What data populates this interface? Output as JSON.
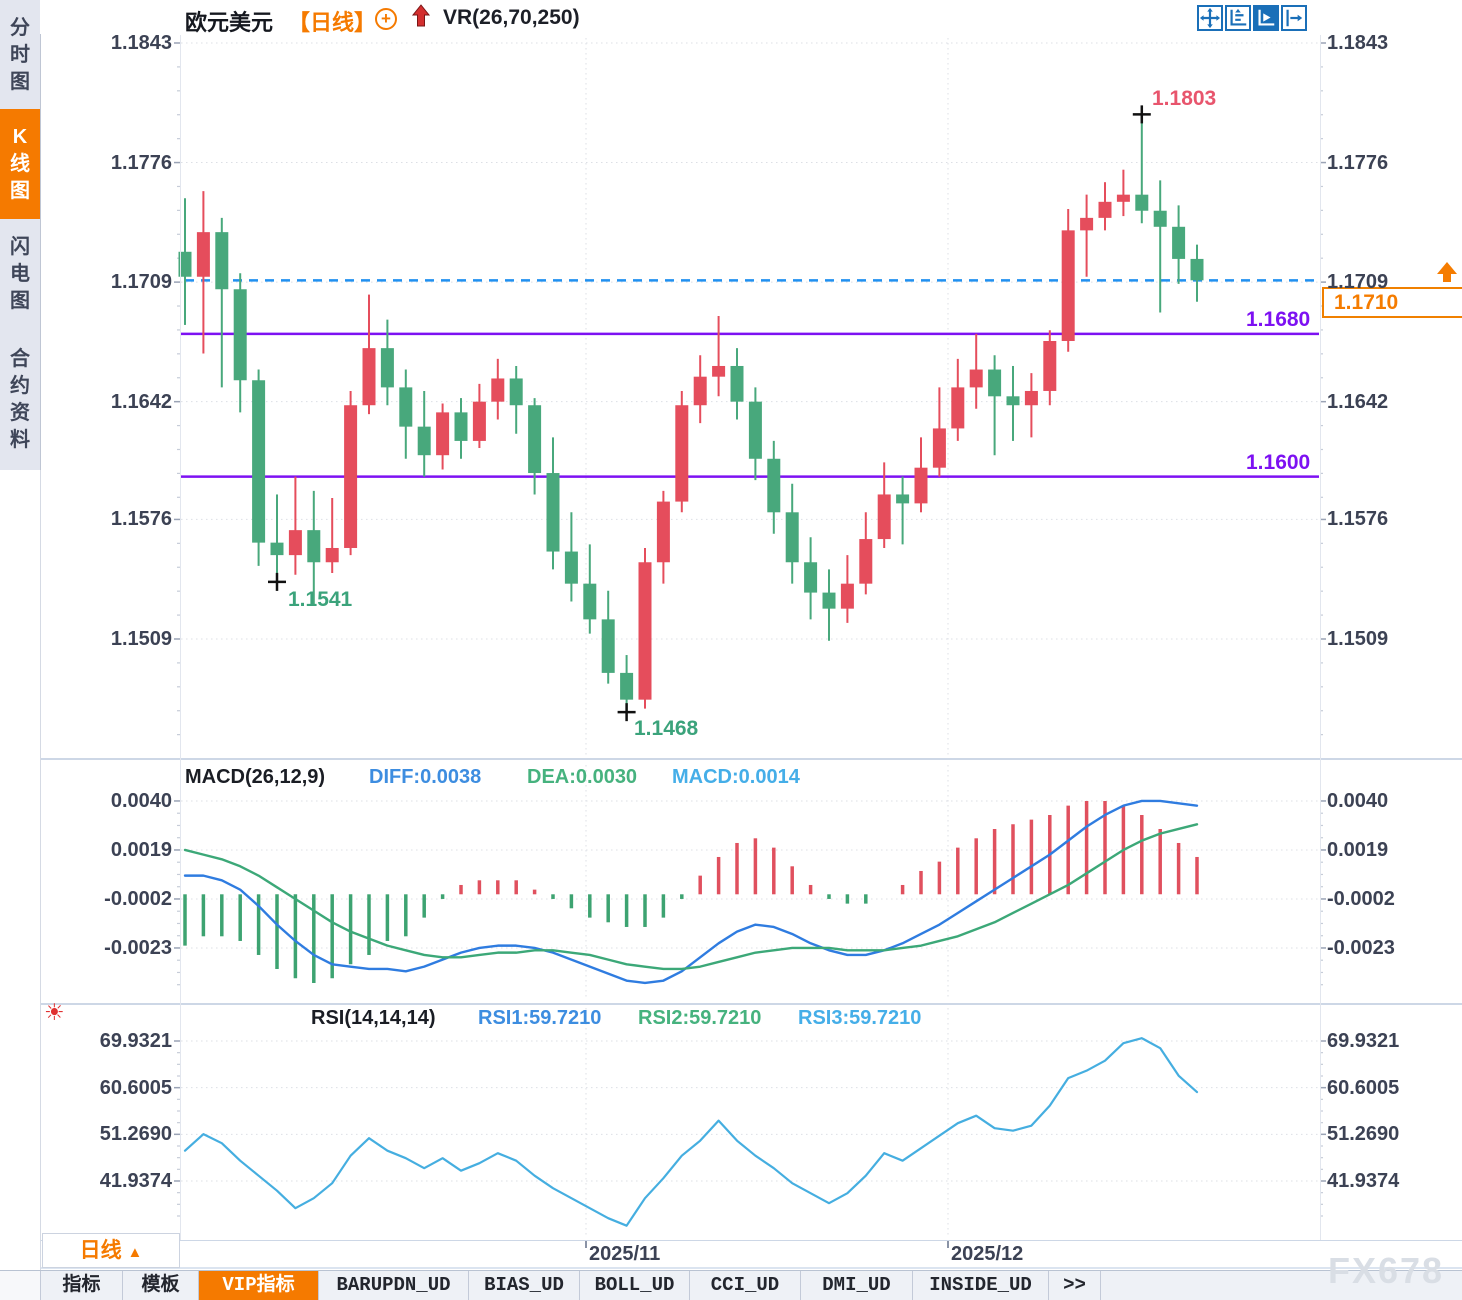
{
  "header": {
    "symbol": "欧元美元",
    "period_tag": "【日线】",
    "indicator": "VR(26,70,250)",
    "window_icons": [
      "pan-move-icon",
      "axis-zoom-icon",
      "auto-fit-icon",
      "collapse-right-icon"
    ]
  },
  "sidebar": {
    "items": [
      {
        "label": "分时图",
        "active": false
      },
      {
        "label": "K线图",
        "active": true
      },
      {
        "label": "闪电图",
        "active": false
      },
      {
        "label": "合约资料",
        "active": false
      }
    ]
  },
  "main_chart": {
    "y_axis": [
      "1.1843",
      "1.1776",
      "1.1709",
      "1.1642",
      "1.1576",
      "1.1509"
    ],
    "x_labels": [
      "2025/11",
      "2025/12"
    ],
    "levels": {
      "resistance_label": "1.1680",
      "support_label": "1.1600",
      "last_label": "1.1710"
    },
    "annotations": {
      "high_label": "1.1803",
      "low1_label": "1.1541",
      "low2_label": "1.1468"
    },
    "colors": {
      "up": "#e54d5c",
      "down": "#48a87c",
      "level_line": "#7d11f2",
      "last_line": "#2090f0",
      "tag": "#f57c00"
    }
  },
  "macd_panel": {
    "title": "MACD(26,12,9)",
    "diff_label": "DIFF:0.0038",
    "dea_label": "DEA:0.0030",
    "macd_label": "MACD:0.0014",
    "y_axis": [
      "0.0040",
      "0.0019",
      "-0.0002",
      "-0.0023"
    ]
  },
  "rsi_panel": {
    "title": "RSI(14,14,14)",
    "rsi1_label": "RSI1:59.7210",
    "rsi2_label": "RSI2:59.7210",
    "rsi3_label": "RSI3:59.7210",
    "y_axis": [
      "69.9321",
      "60.6005",
      "51.2690",
      "41.9374"
    ]
  },
  "footer": {
    "period": "日线",
    "tabs": [
      {
        "label": "指标",
        "active": false
      },
      {
        "label": "模板",
        "active": false
      },
      {
        "label": "VIP指标",
        "active": true
      },
      {
        "label": "BARUPDN_UD",
        "active": false
      },
      {
        "label": "BIAS_UD",
        "active": false
      },
      {
        "label": "BOLL_UD",
        "active": false
      },
      {
        "label": "CCI_UD",
        "active": false
      },
      {
        "label": "DMI_UD",
        "active": false
      },
      {
        "label": "INSIDE_UD",
        "active": false
      },
      {
        "label": ">>",
        "active": false
      }
    ]
  },
  "watermark": "FX678",
  "chart_data": {
    "type": "candlestick",
    "title": "欧元美元 日线",
    "price_axis": [
      1.1843,
      1.1776,
      1.1709,
      1.1642,
      1.1576,
      1.1509
    ],
    "x_axis_labels": [
      "2025/11",
      "2025/12"
    ],
    "levels": {
      "last_price": 1.171,
      "resistance": 1.168,
      "support": 1.16
    },
    "annotations": [
      {
        "text": "1.1803",
        "kind": "high",
        "index": 52,
        "value": 1.1803
      },
      {
        "text": "1.1541",
        "kind": "low",
        "index": 5,
        "value": 1.1541
      },
      {
        "text": "1.1468",
        "kind": "low",
        "index": 24,
        "value": 1.1468
      }
    ],
    "candles": [
      [
        1.1726,
        1.1756,
        1.1685,
        1.1712
      ],
      [
        1.1712,
        1.176,
        1.1669,
        1.1737
      ],
      [
        1.1737,
        1.1745,
        1.165,
        1.1705
      ],
      [
        1.1705,
        1.1714,
        1.1636,
        1.1654
      ],
      [
        1.1654,
        1.166,
        1.155,
        1.1563
      ],
      [
        1.1563,
        1.159,
        1.1541,
        1.1556
      ],
      [
        1.1556,
        1.16,
        1.1545,
        1.157
      ],
      [
        1.157,
        1.1592,
        1.1528,
        1.1552
      ],
      [
        1.1552,
        1.1588,
        1.1546,
        1.156
      ],
      [
        1.156,
        1.1648,
        1.1556,
        1.164
      ],
      [
        1.164,
        1.1702,
        1.1635,
        1.1672
      ],
      [
        1.1672,
        1.1688,
        1.164,
        1.165
      ],
      [
        1.165,
        1.166,
        1.161,
        1.1628
      ],
      [
        1.1628,
        1.1648,
        1.16,
        1.1612
      ],
      [
        1.1612,
        1.1641,
        1.1604,
        1.1636
      ],
      [
        1.1636,
        1.1644,
        1.161,
        1.162
      ],
      [
        1.162,
        1.1652,
        1.1616,
        1.1642
      ],
      [
        1.1642,
        1.1666,
        1.1632,
        1.1655
      ],
      [
        1.1655,
        1.1662,
        1.1624,
        1.164
      ],
      [
        1.164,
        1.1644,
        1.159,
        1.1602
      ],
      [
        1.1602,
        1.1622,
        1.1548,
        1.1558
      ],
      [
        1.1558,
        1.158,
        1.153,
        1.154
      ],
      [
        1.154,
        1.1562,
        1.1512,
        1.152
      ],
      [
        1.152,
        1.1536,
        1.1484,
        1.149
      ],
      [
        1.149,
        1.15,
        1.1468,
        1.1475
      ],
      [
        1.1475,
        1.156,
        1.147,
        1.1552
      ],
      [
        1.1552,
        1.1592,
        1.154,
        1.1586
      ],
      [
        1.1586,
        1.1648,
        1.158,
        1.164
      ],
      [
        1.164,
        1.1668,
        1.163,
        1.1656
      ],
      [
        1.1656,
        1.169,
        1.1645,
        1.1662
      ],
      [
        1.1662,
        1.1672,
        1.1632,
        1.1642
      ],
      [
        1.1642,
        1.165,
        1.1598,
        1.161
      ],
      [
        1.161,
        1.162,
        1.1568,
        1.158
      ],
      [
        1.158,
        1.1596,
        1.154,
        1.1552
      ],
      [
        1.1552,
        1.1566,
        1.152,
        1.1535
      ],
      [
        1.1535,
        1.1548,
        1.1508,
        1.1526
      ],
      [
        1.1526,
        1.1556,
        1.1518,
        1.154
      ],
      [
        1.154,
        1.158,
        1.1534,
        1.1565
      ],
      [
        1.1565,
        1.1608,
        1.156,
        1.159
      ],
      [
        1.159,
        1.16,
        1.1562,
        1.1585
      ],
      [
        1.1585,
        1.1622,
        1.158,
        1.1605
      ],
      [
        1.1605,
        1.165,
        1.16,
        1.1627
      ],
      [
        1.1627,
        1.1666,
        1.162,
        1.165
      ],
      [
        1.165,
        1.168,
        1.1638,
        1.166
      ],
      [
        1.166,
        1.1668,
        1.1612,
        1.1645
      ],
      [
        1.1645,
        1.1662,
        1.162,
        1.164
      ],
      [
        1.164,
        1.1658,
        1.1622,
        1.1648
      ],
      [
        1.1648,
        1.1682,
        1.164,
        1.1676
      ],
      [
        1.1676,
        1.175,
        1.167,
        1.1738
      ],
      [
        1.1738,
        1.1758,
        1.1712,
        1.1745
      ],
      [
        1.1745,
        1.1765,
        1.1738,
        1.1754
      ],
      [
        1.1754,
        1.1772,
        1.1746,
        1.1758
      ],
      [
        1.1758,
        1.1803,
        1.1742,
        1.1749
      ],
      [
        1.1749,
        1.1766,
        1.1692,
        1.174
      ],
      [
        1.174,
        1.1752,
        1.1708,
        1.1722
      ],
      [
        1.1722,
        1.173,
        1.1698,
        1.171
      ]
    ],
    "macd": {
      "params": "26,12,9",
      "current": {
        "diff": 0.0038,
        "dea": 0.003,
        "macd": 0.0014
      },
      "axis": [
        0.004,
        0.0019,
        -0.0002,
        -0.0023
      ],
      "diff": [
        0.0008,
        0.0008,
        0.0006,
        0.0002,
        -0.0005,
        -0.0013,
        -0.002,
        -0.0026,
        -0.003,
        -0.0031,
        -0.0032,
        -0.0032,
        -0.0033,
        -0.0031,
        -0.0028,
        -0.0025,
        -0.0023,
        -0.0022,
        -0.0022,
        -0.0023,
        -0.0025,
        -0.0028,
        -0.0031,
        -0.0034,
        -0.0037,
        -0.0038,
        -0.0037,
        -0.0033,
        -0.0027,
        -0.0021,
        -0.0016,
        -0.0013,
        -0.0014,
        -0.0017,
        -0.0021,
        -0.0024,
        -0.0026,
        -0.0026,
        -0.0024,
        -0.0021,
        -0.0017,
        -0.0013,
        -0.0008,
        -0.0003,
        0.0002,
        0.0007,
        0.0012,
        0.0017,
        0.0023,
        0.0029,
        0.0034,
        0.0038,
        0.004,
        0.004,
        0.0039,
        0.0038
      ],
      "dea": [
        0.0019,
        0.0017,
        0.0015,
        0.0012,
        0.0008,
        0.0003,
        -0.0002,
        -0.0007,
        -0.0012,
        -0.0016,
        -0.0019,
        -0.0022,
        -0.0024,
        -0.0026,
        -0.0027,
        -0.0027,
        -0.0026,
        -0.0025,
        -0.0025,
        -0.0024,
        -0.0024,
        -0.0025,
        -0.0026,
        -0.0028,
        -0.003,
        -0.0031,
        -0.0032,
        -0.0032,
        -0.0031,
        -0.0029,
        -0.0027,
        -0.0025,
        -0.0024,
        -0.0023,
        -0.0023,
        -0.0023,
        -0.0024,
        -0.0024,
        -0.0024,
        -0.0023,
        -0.0022,
        -0.002,
        -0.0018,
        -0.0015,
        -0.0012,
        -0.0008,
        -0.0004,
        0.0,
        0.0004,
        0.0009,
        0.0014,
        0.0019,
        0.0023,
        0.0026,
        0.0028,
        0.003
      ]
    },
    "rsi": {
      "params": "14,14,14",
      "current": 59.721,
      "axis": [
        69.9321,
        60.6005,
        51.269,
        41.9374
      ],
      "values": [
        48.0,
        51.3,
        49.5,
        46.0,
        43.0,
        40.0,
        36.5,
        38.5,
        41.5,
        47.0,
        50.5,
        48.0,
        46.5,
        44.5,
        46.5,
        44.0,
        45.5,
        47.5,
        46.0,
        43.0,
        40.5,
        38.5,
        36.5,
        34.5,
        33.0,
        38.5,
        42.5,
        47.0,
        50.0,
        54.0,
        50.0,
        47.0,
        44.5,
        41.5,
        39.5,
        37.5,
        39.5,
        43.0,
        47.5,
        46.0,
        48.5,
        51.0,
        53.5,
        55.0,
        52.5,
        52.0,
        53.0,
        57.0,
        62.5,
        64.0,
        66.0,
        69.5,
        70.5,
        68.5,
        63.0,
        59.72
      ]
    }
  }
}
